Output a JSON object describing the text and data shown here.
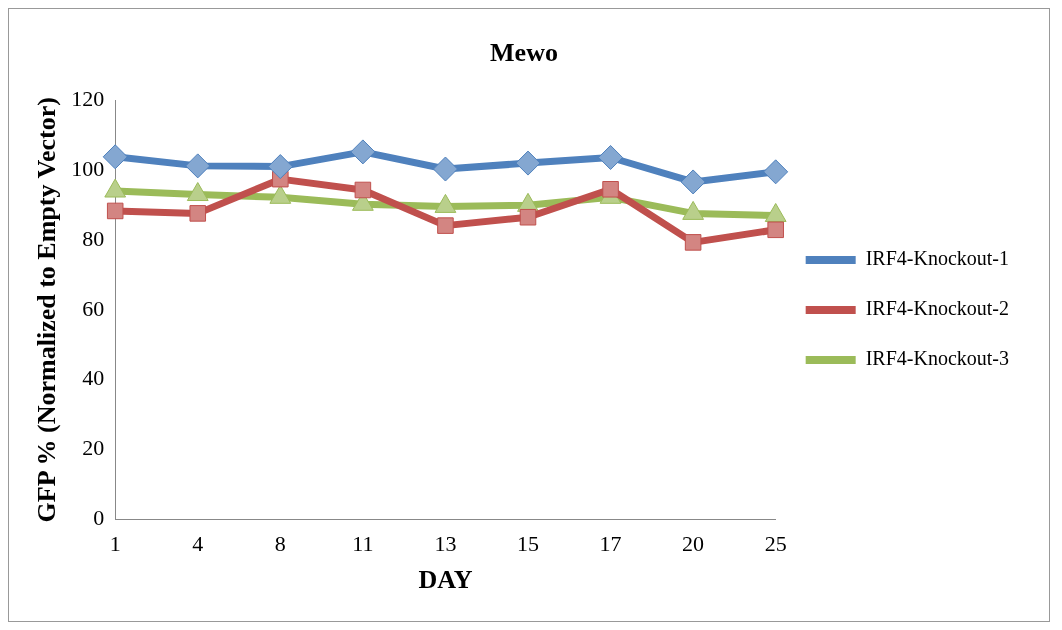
{
  "chart_data": {
    "type": "line",
    "title": "Mewo",
    "xlabel": "DAY",
    "ylabel": "GFP % (Normalized to Empty Vector)",
    "categories": [
      "1",
      "4",
      "8",
      "11",
      "13",
      "15",
      "17",
      "20",
      "25"
    ],
    "series": [
      {
        "name": "IRF4-Knockout-1",
        "color": "#4f81bd",
        "marker": "diamond",
        "values": [
          103.8,
          101.2,
          101,
          105.2,
          100.3,
          102,
          103.6,
          96.6,
          99.5
        ]
      },
      {
        "name": "IRF4-Knockout-2",
        "color": "#c0504d",
        "marker": "square",
        "values": [
          88.3,
          87.6,
          97.4,
          94.3,
          84.1,
          86.5,
          94.5,
          79.3,
          82.9
        ]
      },
      {
        "name": "IRF4-Knockout-3",
        "color": "#9bbb59",
        "marker": "triangle",
        "values": [
          94,
          93,
          92.2,
          90.2,
          89.6,
          89.9,
          92.2,
          87.6,
          87
        ]
      }
    ],
    "ylim": [
      0,
      120
    ],
    "yticks": [
      0,
      20,
      40,
      60,
      80,
      100,
      120
    ],
    "grid": false,
    "legend": "right",
    "line_style": "solid"
  }
}
